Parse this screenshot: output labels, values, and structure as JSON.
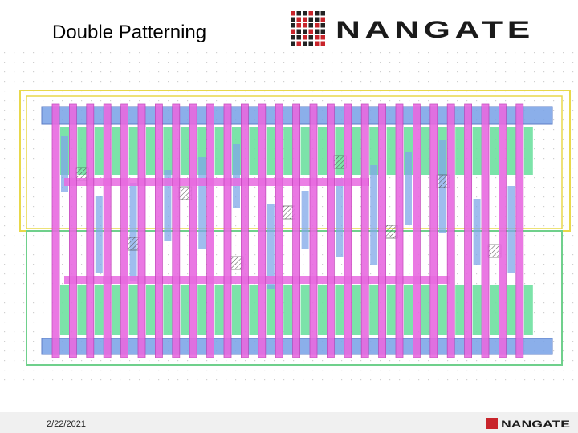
{
  "header": {
    "title": "Double Patterning",
    "logo": "NANGATE"
  },
  "footer": {
    "date": "2/22/2021",
    "logo": "NANGATE"
  }
}
